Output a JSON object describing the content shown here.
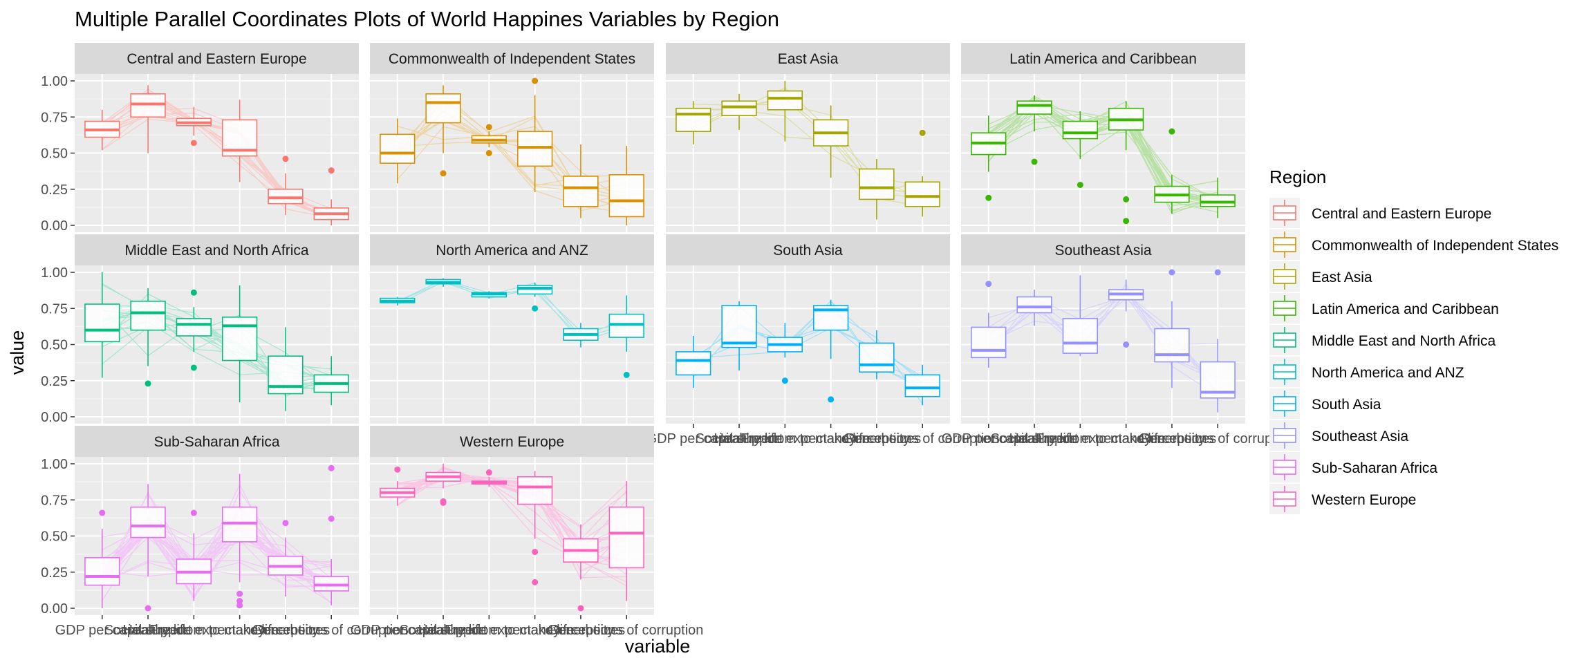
{
  "chart_data": {
    "type": "parallel-coordinates-boxplot-facets",
    "title": "Multiple Parallel Coordinates Plots of World Happines Variables by Region",
    "xlabel": "variable",
    "ylabel": "value",
    "ylim": [
      0,
      1
    ],
    "yticks": [
      "0.00",
      "0.25",
      "0.50",
      "0.75",
      "1.00"
    ],
    "variables": [
      "GDP per capita",
      "Social support",
      "Healthy life expectancy",
      "Freedom to make life choices",
      "Generosity",
      "Perceptions of corruption"
    ],
    "legend": {
      "title": "Region",
      "placement": "right"
    },
    "facets": [
      {
        "name": "Central and Eastern Europe",
        "color": "#F8766D",
        "n_lines": 16,
        "boxes": [
          {
            "q1": 0.61,
            "median": 0.66,
            "q3": 0.72,
            "lo": 0.52,
            "hi": 0.8,
            "outliers": []
          },
          {
            "q1": 0.75,
            "median": 0.84,
            "q3": 0.91,
            "lo": 0.5,
            "hi": 0.97,
            "outliers": []
          },
          {
            "q1": 0.69,
            "median": 0.71,
            "q3": 0.74,
            "lo": 0.62,
            "hi": 0.82,
            "outliers": [
              0.57
            ]
          },
          {
            "q1": 0.48,
            "median": 0.52,
            "q3": 0.73,
            "lo": 0.3,
            "hi": 0.87,
            "outliers": []
          },
          {
            "q1": 0.15,
            "median": 0.19,
            "q3": 0.25,
            "lo": 0.07,
            "hi": 0.36,
            "outliers": [
              0.46
            ]
          },
          {
            "q1": 0.04,
            "median": 0.08,
            "q3": 0.12,
            "lo": 0.0,
            "hi": 0.18,
            "outliers": [
              0.38
            ]
          }
        ]
      },
      {
        "name": "Commonwealth of Independent States",
        "color": "#D89000",
        "n_lines": 12,
        "boxes": [
          {
            "q1": 0.43,
            "median": 0.5,
            "q3": 0.63,
            "lo": 0.29,
            "hi": 0.74,
            "outliers": []
          },
          {
            "q1": 0.71,
            "median": 0.85,
            "q3": 0.91,
            "lo": 0.5,
            "hi": 0.97,
            "outliers": [
              0.36
            ]
          },
          {
            "q1": 0.57,
            "median": 0.59,
            "q3": 0.62,
            "lo": 0.54,
            "hi": 0.65,
            "outliers": [
              0.68,
              0.5
            ]
          },
          {
            "q1": 0.41,
            "median": 0.54,
            "q3": 0.65,
            "lo": 0.23,
            "hi": 0.9,
            "outliers": [
              1.0
            ]
          },
          {
            "q1": 0.13,
            "median": 0.26,
            "q3": 0.34,
            "lo": 0.05,
            "hi": 0.56,
            "outliers": []
          },
          {
            "q1": 0.06,
            "median": 0.17,
            "q3": 0.35,
            "lo": 0.0,
            "hi": 0.55,
            "outliers": []
          }
        ]
      },
      {
        "name": "East Asia",
        "color": "#A3A500",
        "n_lines": 6,
        "boxes": [
          {
            "q1": 0.65,
            "median": 0.77,
            "q3": 0.81,
            "lo": 0.56,
            "hi": 0.86,
            "outliers": []
          },
          {
            "q1": 0.76,
            "median": 0.82,
            "q3": 0.86,
            "lo": 0.66,
            "hi": 0.91,
            "outliers": []
          },
          {
            "q1": 0.8,
            "median": 0.88,
            "q3": 0.93,
            "lo": 0.58,
            "hi": 1.0,
            "outliers": []
          },
          {
            "q1": 0.55,
            "median": 0.64,
            "q3": 0.73,
            "lo": 0.33,
            "hi": 0.83,
            "outliers": []
          },
          {
            "q1": 0.18,
            "median": 0.26,
            "q3": 0.39,
            "lo": 0.04,
            "hi": 0.46,
            "outliers": []
          },
          {
            "q1": 0.13,
            "median": 0.2,
            "q3": 0.3,
            "lo": 0.06,
            "hi": 0.34,
            "outliers": [
              0.64
            ]
          }
        ]
      },
      {
        "name": "Latin America and Caribbean",
        "color": "#39B600",
        "n_lines": 20,
        "boxes": [
          {
            "q1": 0.49,
            "median": 0.57,
            "q3": 0.64,
            "lo": 0.37,
            "hi": 0.76,
            "outliers": [
              0.19
            ]
          },
          {
            "q1": 0.77,
            "median": 0.83,
            "q3": 0.86,
            "lo": 0.65,
            "hi": 0.9,
            "outliers": [
              0.44
            ]
          },
          {
            "q1": 0.6,
            "median": 0.64,
            "q3": 0.72,
            "lo": 0.46,
            "hi": 0.79,
            "outliers": [
              0.28
            ]
          },
          {
            "q1": 0.66,
            "median": 0.73,
            "q3": 0.81,
            "lo": 0.52,
            "hi": 0.86,
            "outliers": [
              0.18,
              0.03
            ]
          },
          {
            "q1": 0.16,
            "median": 0.21,
            "q3": 0.27,
            "lo": 0.08,
            "hi": 0.35,
            "outliers": [
              0.65
            ]
          },
          {
            "q1": 0.13,
            "median": 0.16,
            "q3": 0.21,
            "lo": 0.05,
            "hi": 0.33,
            "outliers": []
          }
        ]
      },
      {
        "name": "Middle East and North Africa",
        "color": "#00BF7D",
        "n_lines": 16,
        "boxes": [
          {
            "q1": 0.52,
            "median": 0.6,
            "q3": 0.78,
            "lo": 0.27,
            "hi": 1.0,
            "outliers": []
          },
          {
            "q1": 0.6,
            "median": 0.72,
            "q3": 0.8,
            "lo": 0.35,
            "hi": 0.89,
            "outliers": [
              0.23
            ]
          },
          {
            "q1": 0.56,
            "median": 0.64,
            "q3": 0.68,
            "lo": 0.45,
            "hi": 0.76,
            "outliers": [
              0.86,
              0.34
            ]
          },
          {
            "q1": 0.39,
            "median": 0.63,
            "q3": 0.69,
            "lo": 0.1,
            "hi": 0.91,
            "outliers": []
          },
          {
            "q1": 0.16,
            "median": 0.21,
            "q3": 0.42,
            "lo": 0.04,
            "hi": 0.62,
            "outliers": []
          },
          {
            "q1": 0.17,
            "median": 0.23,
            "q3": 0.29,
            "lo": 0.08,
            "hi": 0.42,
            "outliers": []
          }
        ]
      },
      {
        "name": "North America and ANZ",
        "color": "#00BFC4",
        "n_lines": 4,
        "boxes": [
          {
            "q1": 0.79,
            "median": 0.8,
            "q3": 0.82,
            "lo": 0.77,
            "hi": 0.83,
            "outliers": []
          },
          {
            "q1": 0.92,
            "median": 0.93,
            "q3": 0.95,
            "lo": 0.9,
            "hi": 0.96,
            "outliers": []
          },
          {
            "q1": 0.83,
            "median": 0.85,
            "q3": 0.86,
            "lo": 0.82,
            "hi": 0.87,
            "outliers": []
          },
          {
            "q1": 0.85,
            "median": 0.89,
            "q3": 0.91,
            "lo": 0.83,
            "hi": 0.93,
            "outliers": [
              0.75
            ]
          },
          {
            "q1": 0.53,
            "median": 0.57,
            "q3": 0.61,
            "lo": 0.48,
            "hi": 0.65,
            "outliers": []
          },
          {
            "q1": 0.55,
            "median": 0.64,
            "q3": 0.71,
            "lo": 0.45,
            "hi": 0.84,
            "outliers": [
              0.29
            ]
          }
        ]
      },
      {
        "name": "South Asia",
        "color": "#00B0F6",
        "n_lines": 7,
        "boxes": [
          {
            "q1": 0.29,
            "median": 0.39,
            "q3": 0.45,
            "lo": 0.2,
            "hi": 0.56,
            "outliers": []
          },
          {
            "q1": 0.48,
            "median": 0.51,
            "q3": 0.77,
            "lo": 0.32,
            "hi": 0.8,
            "outliers": []
          },
          {
            "q1": 0.45,
            "median": 0.5,
            "q3": 0.55,
            "lo": 0.41,
            "hi": 0.65,
            "outliers": [
              0.25
            ]
          },
          {
            "q1": 0.6,
            "median": 0.74,
            "q3": 0.77,
            "lo": 0.4,
            "hi": 0.81,
            "outliers": [
              0.12
            ]
          },
          {
            "q1": 0.31,
            "median": 0.36,
            "q3": 0.51,
            "lo": 0.26,
            "hi": 0.6,
            "outliers": []
          },
          {
            "q1": 0.14,
            "median": 0.2,
            "q3": 0.29,
            "lo": 0.08,
            "hi": 0.36,
            "outliers": []
          }
        ]
      },
      {
        "name": "Southeast Asia",
        "color": "#9590FF",
        "n_lines": 9,
        "boxes": [
          {
            "q1": 0.41,
            "median": 0.46,
            "q3": 0.62,
            "lo": 0.34,
            "hi": 0.72,
            "outliers": [
              0.92
            ]
          },
          {
            "q1": 0.72,
            "median": 0.76,
            "q3": 0.83,
            "lo": 0.63,
            "hi": 0.88,
            "outliers": []
          },
          {
            "q1": 0.44,
            "median": 0.51,
            "q3": 0.68,
            "lo": 0.42,
            "hi": 0.98,
            "outliers": []
          },
          {
            "q1": 0.81,
            "median": 0.85,
            "q3": 0.88,
            "lo": 0.73,
            "hi": 0.95,
            "outliers": [
              0.5
            ]
          },
          {
            "q1": 0.38,
            "median": 0.43,
            "q3": 0.61,
            "lo": 0.2,
            "hi": 0.8,
            "outliers": [
              1.0
            ]
          },
          {
            "q1": 0.13,
            "median": 0.17,
            "q3": 0.38,
            "lo": 0.03,
            "hi": 0.54,
            "outliers": [
              1.0
            ]
          }
        ]
      },
      {
        "name": "Sub-Saharan Africa",
        "color": "#E76BF3",
        "n_lines": 30,
        "boxes": [
          {
            "q1": 0.16,
            "median": 0.22,
            "q3": 0.35,
            "lo": 0.0,
            "hi": 0.55,
            "outliers": [
              0.66
            ]
          },
          {
            "q1": 0.49,
            "median": 0.57,
            "q3": 0.7,
            "lo": 0.22,
            "hi": 0.86,
            "outliers": [
              0.0
            ]
          },
          {
            "q1": 0.17,
            "median": 0.25,
            "q3": 0.34,
            "lo": 0.05,
            "hi": 0.52,
            "outliers": [
              0.66
            ]
          },
          {
            "q1": 0.46,
            "median": 0.59,
            "q3": 0.7,
            "lo": 0.18,
            "hi": 0.93,
            "outliers": [
              0.1,
              0.05,
              0.02
            ]
          },
          {
            "q1": 0.23,
            "median": 0.29,
            "q3": 0.36,
            "lo": 0.08,
            "hi": 0.49,
            "outliers": [
              0.59
            ]
          },
          {
            "q1": 0.12,
            "median": 0.16,
            "q3": 0.22,
            "lo": 0.02,
            "hi": 0.34,
            "outliers": [
              0.62,
              0.97
            ]
          }
        ]
      },
      {
        "name": "Western Europe",
        "color": "#FF62BC",
        "n_lines": 21,
        "boxes": [
          {
            "q1": 0.77,
            "median": 0.8,
            "q3": 0.83,
            "lo": 0.71,
            "hi": 0.88,
            "outliers": [
              0.96
            ]
          },
          {
            "q1": 0.88,
            "median": 0.91,
            "q3": 0.94,
            "lo": 0.83,
            "hi": 1.0,
            "outliers": [
              0.73,
              0.74
            ]
          },
          {
            "q1": 0.86,
            "median": 0.87,
            "q3": 0.88,
            "lo": 0.84,
            "hi": 0.91,
            "outliers": [
              0.94
            ]
          },
          {
            "q1": 0.72,
            "median": 0.84,
            "q3": 0.91,
            "lo": 0.48,
            "hi": 0.95,
            "outliers": [
              0.39,
              0.18
            ]
          },
          {
            "q1": 0.32,
            "median": 0.4,
            "q3": 0.48,
            "lo": 0.2,
            "hi": 0.58,
            "outliers": [
              0.0
            ]
          },
          {
            "q1": 0.28,
            "median": 0.52,
            "q3": 0.7,
            "lo": 0.05,
            "hi": 0.88,
            "outliers": []
          }
        ]
      }
    ]
  }
}
